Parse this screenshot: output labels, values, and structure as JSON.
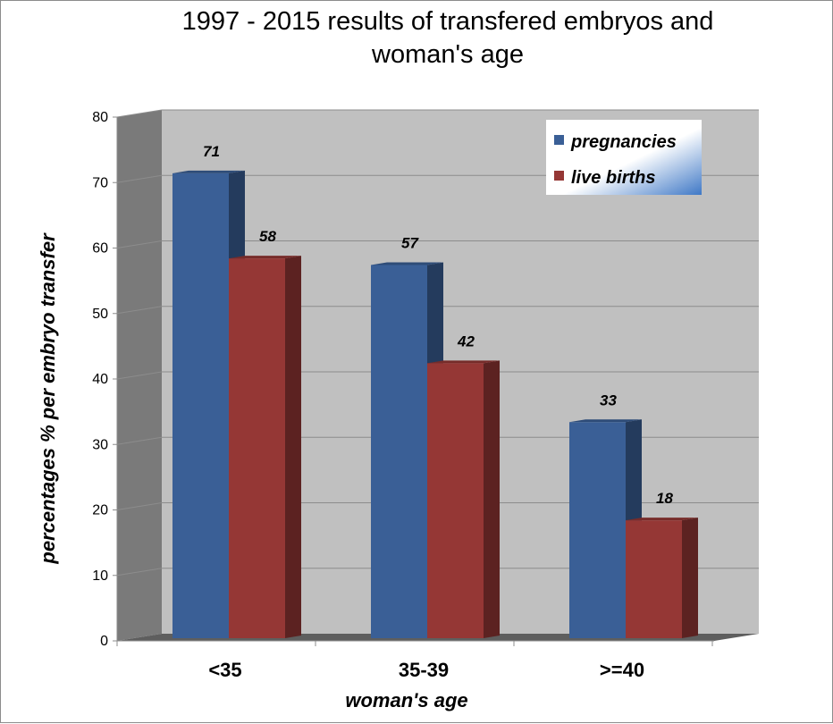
{
  "chart_data": {
    "type": "bar",
    "title": "1997 - 2015 results of transfered embryos  and woman's age",
    "title_lines": [
      "1997 - 2015 results of transfered embryos  and",
      "woman's age"
    ],
    "xlabel": "woman's age",
    "ylabel": "percentages % per embryo transfer",
    "categories": [
      "<35",
      "35-39",
      ">=40"
    ],
    "series": [
      {
        "name": "pregnancies",
        "values": [
          71,
          57,
          33
        ],
        "color": "#3a5f96"
      },
      {
        "name": "live births",
        "values": [
          58,
          42,
          18
        ],
        "color": "#953735"
      }
    ],
    "ylim": [
      0,
      80
    ],
    "yticks": [
      0,
      10,
      20,
      30,
      40,
      50,
      60,
      70,
      80
    ],
    "grid": true,
    "legend_position": "top-right",
    "style": "3d-clustered-column"
  }
}
